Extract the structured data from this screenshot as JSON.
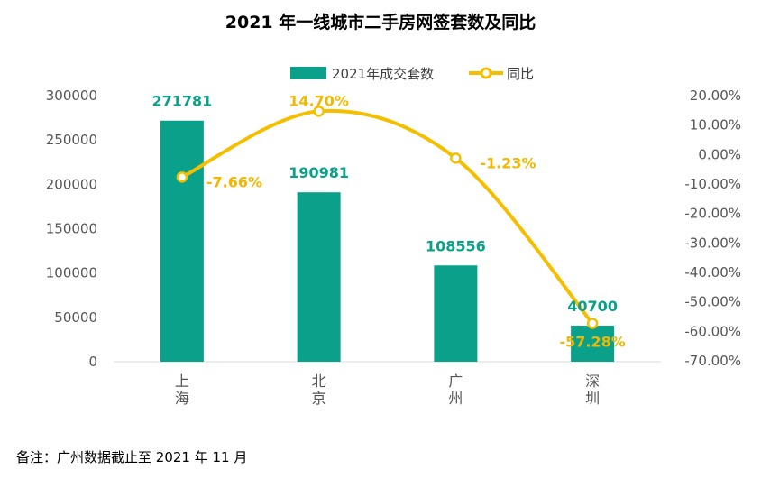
{
  "chart_data": {
    "type": "bar",
    "title": "2021 年一线城市二手房网签套数及同比",
    "categories": [
      "上海",
      "北京",
      "广州",
      "深圳"
    ],
    "series": [
      {
        "name": "2021年成交套数",
        "type": "bar",
        "axis": "left",
        "values": [
          271781,
          190981,
          108556,
          40700
        ],
        "labels": [
          "271781",
          "190981",
          "108556",
          "40700"
        ]
      },
      {
        "name": "同比",
        "type": "line",
        "axis": "right",
        "values": [
          -7.66,
          14.7,
          -1.23,
          -57.28
        ],
        "labels": [
          "-7.66%",
          "14.70%",
          "-1.23%",
          "-57.28%"
        ]
      }
    ],
    "left_axis": {
      "ylim": [
        0,
        300000
      ],
      "ticks": [
        0,
        50000,
        100000,
        150000,
        200000,
        250000,
        300000
      ],
      "tick_labels": [
        "0",
        "50000",
        "100000",
        "150000",
        "200000",
        "250000",
        "300000"
      ]
    },
    "right_axis": {
      "ylim": [
        -70,
        20
      ],
      "ticks": [
        20,
        10,
        0,
        -10,
        -20,
        -30,
        -40,
        -50,
        -60,
        -70
      ],
      "tick_labels": [
        "20.00%",
        "10.00%",
        "0.00%",
        "-10.00%",
        "-20.00%",
        "-30.00%",
        "-40.00%",
        "-50.00%",
        "-60.00%",
        "-70.00%"
      ]
    },
    "legend_position": "top",
    "grid": false,
    "colors": {
      "bar": "#0aa08a",
      "line": "#f5bf00",
      "pct_label": "#f0b800"
    }
  },
  "footnote": "备注：广州数据截止至 2021 年 11 月"
}
